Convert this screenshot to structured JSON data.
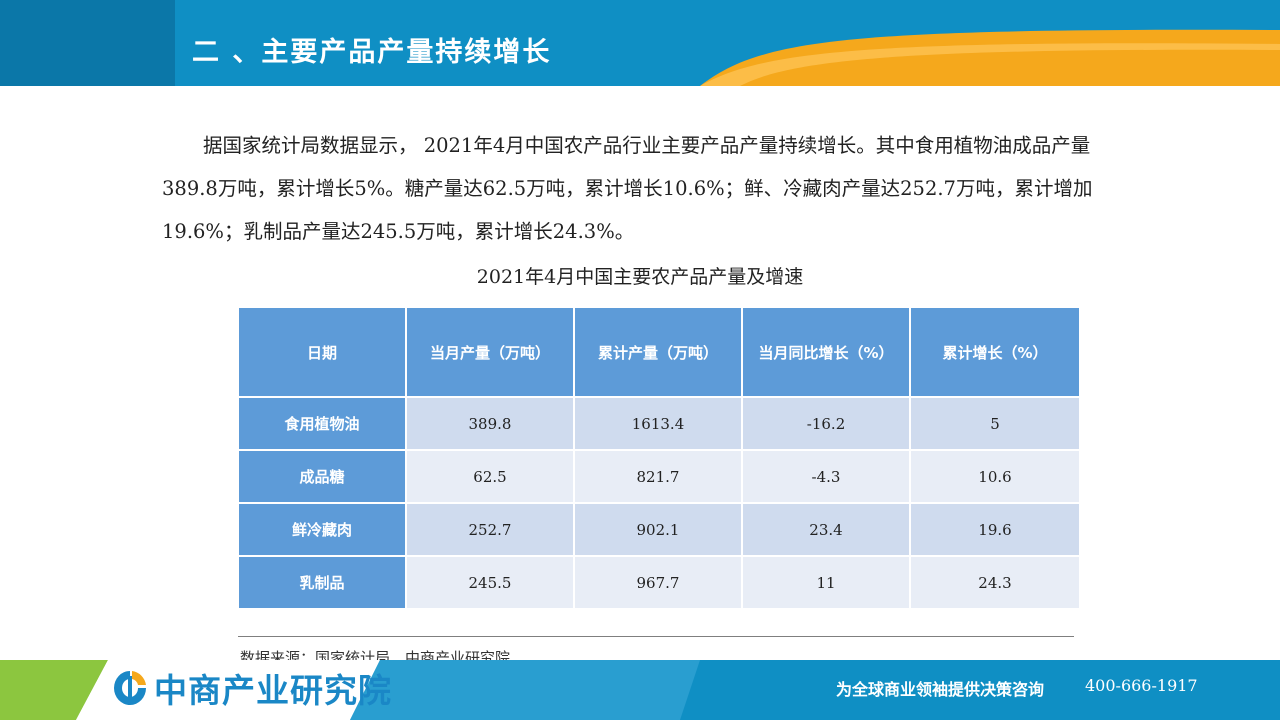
{
  "header": {
    "title": "二 、主要产品产量持续增长"
  },
  "intro": "据国家统计局数据显示， 2021年4月中国农产品行业主要产品产量持续增长。其中食用植物油成品产量389.8万吨，累计增长5%。糖产量达62.5万吨，累计增长10.6%；鲜、冷藏肉产量达252.7万吨，累计增加19.6%；乳制品产量达245.5万吨，累计增长24.3%。",
  "table": {
    "title": "2021年4月中国主要农产品产量及增速",
    "headers": [
      "日期",
      "当月产量（万吨）",
      "累计产量（万吨）",
      "当月同比增长（%）",
      "累计增长（%）"
    ],
    "rows": [
      [
        "食用植物油",
        "389.8",
        "1613.4",
        "-16.2",
        "5"
      ],
      [
        "成品糖",
        "62.5",
        "821.7",
        "-4.3",
        "10.6"
      ],
      [
        "鲜冷藏肉",
        "252.7",
        "902.1",
        "23.4",
        "19.6"
      ],
      [
        "乳制品",
        "245.5",
        "967.7",
        "11",
        "24.3"
      ]
    ]
  },
  "source": "数据来源：国家统计局、中商产业研究院",
  "footer": {
    "logo_text": "中商产业研究院",
    "slogan": "为全球商业领袖提供决策咨询",
    "phone": "400-666-1917"
  },
  "colors": {
    "header_blue": "#0f8fc4",
    "accent_orange": "#f5a81c",
    "table_header": "#5d9bd8",
    "row_odd": "#cfdbee",
    "row_even": "#e8edf6"
  }
}
